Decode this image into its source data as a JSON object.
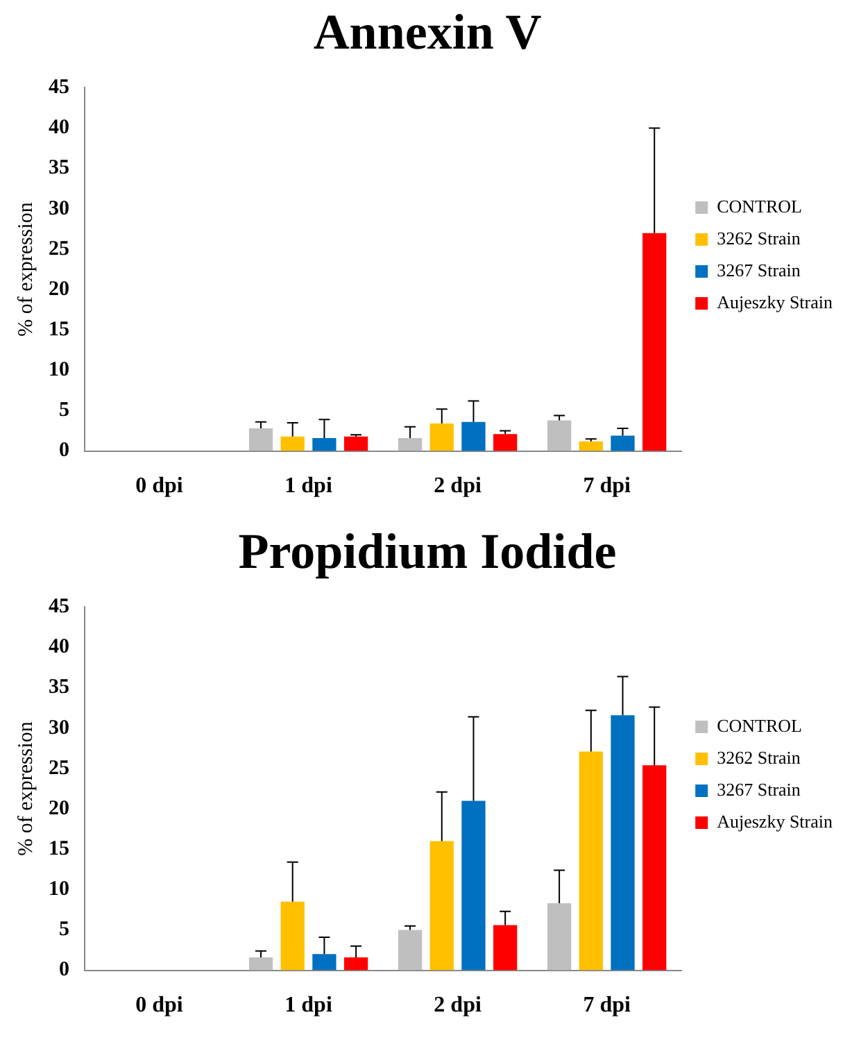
{
  "chart_data": [
    {
      "type": "bar",
      "title": "Annexin V",
      "ylabel": "% of expression",
      "categories": [
        "0 dpi",
        "1 dpi",
        "2 dpi",
        "7 dpi"
      ],
      "ylim": [
        0,
        45
      ],
      "yticks": [
        0,
        5,
        10,
        15,
        20,
        25,
        30,
        35,
        40,
        45
      ],
      "grid": false,
      "legend": "right",
      "series": [
        {
          "name": "CONTROL",
          "color": "#bfbfbf",
          "values": [
            0,
            2.8,
            1.6,
            3.8
          ],
          "errors": [
            null,
            [
              2.8,
              3.6
            ],
            [
              1.6,
              3.0
            ],
            [
              3.8,
              4.4
            ]
          ]
        },
        {
          "name": "3262 Strain",
          "color": "#ffc000",
          "values": [
            0,
            1.8,
            3.4,
            1.2
          ],
          "errors": [
            null,
            [
              1.8,
              3.5
            ],
            [
              3.4,
              5.2
            ],
            [
              1.2,
              1.5
            ]
          ]
        },
        {
          "name": "3267 Strain",
          "color": "#0070c0",
          "values": [
            0,
            1.6,
            3.6,
            1.9
          ],
          "errors": [
            null,
            [
              1.6,
              3.9
            ],
            [
              3.6,
              6.2
            ],
            [
              1.9,
              2.8
            ]
          ]
        },
        {
          "name": "Aujeszky Strain",
          "color": "#ff0000",
          "values": [
            0,
            1.8,
            2.1,
            27.0
          ],
          "errors": [
            null,
            [
              1.8,
              2.0
            ],
            [
              2.1,
              2.5
            ],
            [
              27.0,
              40.0
            ]
          ]
        }
      ]
    },
    {
      "type": "bar",
      "title": "Propidium Iodide",
      "ylabel": "% of expression",
      "categories": [
        "0 dpi",
        "1 dpi",
        "2 dpi",
        "7 dpi"
      ],
      "ylim": [
        0,
        45
      ],
      "yticks": [
        0,
        5,
        10,
        15,
        20,
        25,
        30,
        35,
        40,
        45
      ],
      "grid": false,
      "legend": "right",
      "series": [
        {
          "name": "CONTROL",
          "color": "#bfbfbf",
          "values": [
            0,
            1.6,
            5.0,
            8.3
          ],
          "errors": [
            null,
            [
              1.6,
              2.4
            ],
            [
              5.0,
              5.5
            ],
            [
              8.3,
              12.4
            ]
          ]
        },
        {
          "name": "3262 Strain",
          "color": "#ffc000",
          "values": [
            0,
            8.5,
            16.0,
            27.1
          ],
          "errors": [
            null,
            [
              8.5,
              13.4
            ],
            [
              16.0,
              22.1
            ],
            [
              27.1,
              32.2
            ]
          ]
        },
        {
          "name": "3267 Strain",
          "color": "#0070c0",
          "values": [
            0,
            2.0,
            21.0,
            31.6
          ],
          "errors": [
            null,
            [
              2.0,
              4.1
            ],
            [
              21.0,
              31.4
            ],
            [
              31.6,
              36.4
            ]
          ]
        },
        {
          "name": "Aujeszky Strain",
          "color": "#ff0000",
          "values": [
            0,
            1.6,
            5.6,
            25.4
          ],
          "errors": [
            null,
            [
              1.6,
              3.0
            ],
            [
              5.6,
              7.3
            ],
            [
              25.4,
              32.6
            ]
          ]
        }
      ]
    }
  ]
}
